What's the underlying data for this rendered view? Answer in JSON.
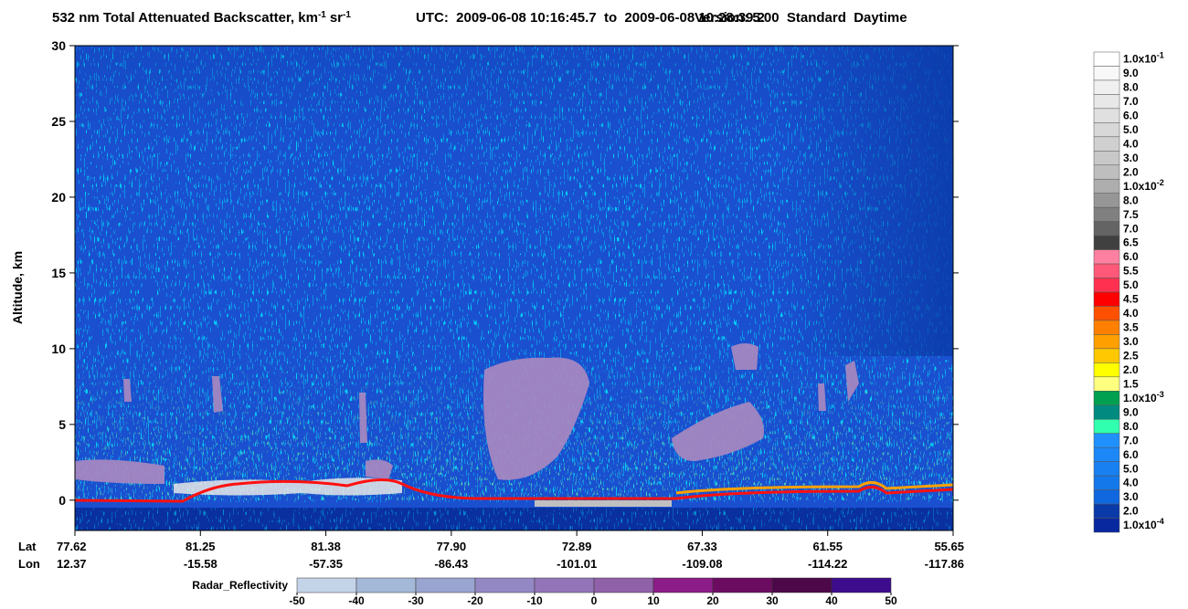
{
  "chart_data": {
    "type": "curtain",
    "title_parts": [
      "532 nm Total Attenuated Backscatter, km",
      "-1",
      "sr",
      "-1",
      "UTC:  2009-06-08 10:16:45.7  to  2009-06-08 10:28:39.2",
      "Version: 5.00  Standard  Daytime"
    ],
    "y_label": "Altitude, km",
    "ylim": [
      -2,
      30
    ],
    "yticks": [
      0,
      5,
      10,
      15,
      20,
      25,
      30
    ],
    "x_row_labels": [
      "Lat",
      "Lon"
    ],
    "lat": [
      "77.62",
      "81.25",
      "81.38",
      "77.90",
      "72.89",
      "67.33",
      "61.55",
      "55.65"
    ],
    "lon": [
      "12.37",
      "-15.58",
      "-57.35",
      "-86.43",
      "-101.01",
      "-109.08",
      "-114.22",
      "-117.86"
    ],
    "colorbar": {
      "labels": [
        {
          "base": "1.0x10",
          "exp": "-1"
        },
        "9.0",
        "8.0",
        "7.0",
        "6.0",
        "5.0",
        "4.0",
        "3.0",
        "2.0",
        {
          "base": "1.0x10",
          "exp": "-2"
        },
        "8.0",
        "7.5",
        "7.0",
        "6.5",
        "6.0",
        "5.5",
        "5.0",
        "4.5",
        "4.0",
        "3.5",
        "3.0",
        "2.5",
        "2.0",
        "1.5",
        {
          "base": "1.0x10",
          "exp": "-3"
        },
        "9.0",
        "8.0",
        "7.0",
        "6.0",
        "5.0",
        "4.0",
        "3.0",
        "2.0",
        {
          "base": "1.0x10",
          "exp": "-4"
        }
      ],
      "colors": [
        "#ffffff",
        "#f8f8f8",
        "#f0f0f0",
        "#e8e8e8",
        "#e0e0e0",
        "#d8d8d8",
        "#d0d0d0",
        "#c8c8c8",
        "#bebebe",
        "#aeaeae",
        "#969696",
        "#808080",
        "#646464",
        "#404040",
        "#ff80a0",
        "#ff5878",
        "#ff3050",
        "#ff0000",
        "#ff5000",
        "#ff8000",
        "#ffa000",
        "#ffc800",
        "#ffff00",
        "#ffff80",
        "#00a050",
        "#008a80",
        "#30ffb0",
        "#2090ff",
        "#1c88f8",
        "#1880f0",
        "#1478ea",
        "#1068e0",
        "#0a3aa8",
        "#0828a0"
      ]
    },
    "radar": {
      "label": "Radar_Reflectivity",
      "ticks": [
        -50,
        -40,
        -30,
        -20,
        -10,
        0,
        10,
        20,
        30,
        40,
        50
      ],
      "colors": [
        "#c4d4e8",
        "#a4b8d8",
        "#9aa4d0",
        "#9488c4",
        "#9474b8",
        "#9060a8",
        "#8c1c88",
        "#6c0c60",
        "#4c0848",
        "#3c0c8c"
      ]
    }
  }
}
